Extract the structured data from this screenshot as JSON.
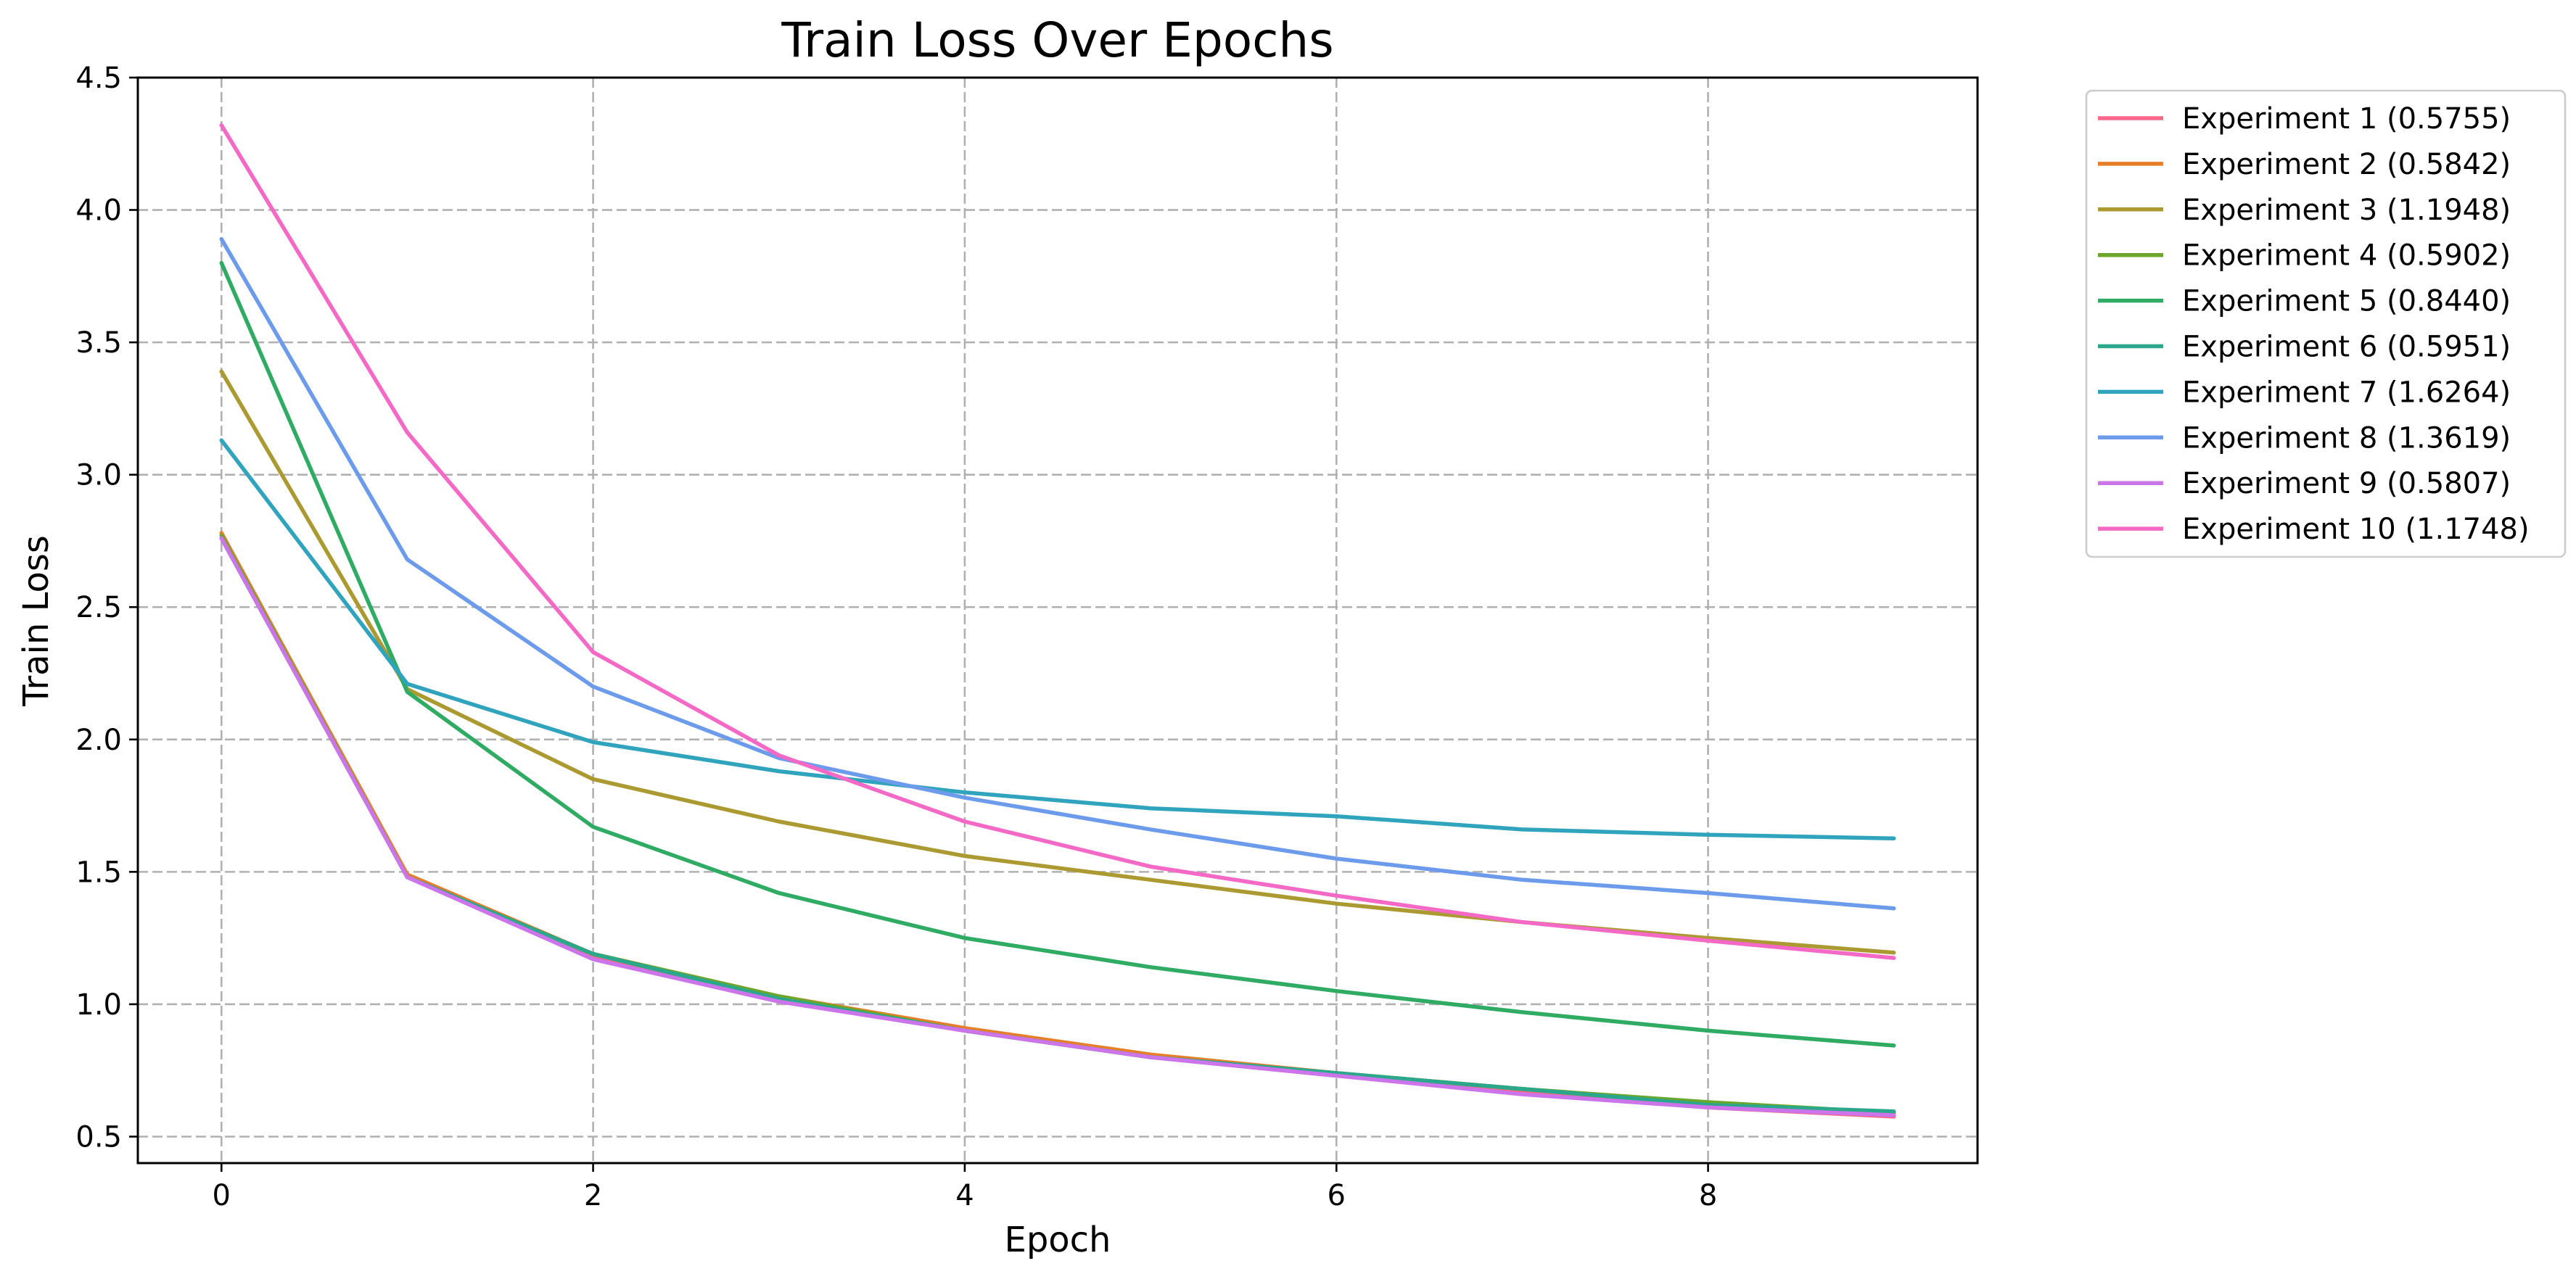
{
  "chart_data": {
    "type": "line",
    "title": "Train Loss Over Epochs",
    "xlabel": "Epoch",
    "ylabel": "Train Loss",
    "xlim": [
      -0.45,
      9.45
    ],
    "ylim": [
      0.4,
      4.5
    ],
    "x_ticks": [
      0,
      2,
      4,
      6,
      8
    ],
    "y_ticks": [
      0.5,
      1.0,
      1.5,
      2.0,
      2.5,
      3.0,
      3.5,
      4.0,
      4.5
    ],
    "x_tick_labels": [
      "0",
      "2",
      "4",
      "6",
      "8"
    ],
    "y_tick_labels": [
      "0.5",
      "1.0",
      "1.5",
      "2.0",
      "2.5",
      "3.0",
      "3.5",
      "4.0",
      "4.5"
    ],
    "grid": true,
    "legend_position": "outside-top-right",
    "x": [
      0,
      1,
      2,
      3,
      4,
      5,
      6,
      7,
      8,
      9
    ],
    "series": [
      {
        "name": "Experiment 1 (0.5755)",
        "color": "#f7678a",
        "values": [
          2.76,
          1.48,
          1.18,
          1.02,
          0.9,
          0.8,
          0.73,
          0.67,
          0.61,
          0.5755
        ]
      },
      {
        "name": "Experiment 2 (0.5842)",
        "color": "#e57f2a",
        "values": [
          2.78,
          1.49,
          1.19,
          1.03,
          0.91,
          0.81,
          0.74,
          0.68,
          0.62,
          0.5842
        ]
      },
      {
        "name": "Experiment 3 (1.1948)",
        "color": "#ab9a31",
        "values": [
          3.39,
          2.19,
          1.85,
          1.69,
          1.56,
          1.47,
          1.38,
          1.31,
          1.25,
          1.1948
        ]
      },
      {
        "name": "Experiment 4 (0.5902)",
        "color": "#6ba72b",
        "values": [
          2.77,
          1.48,
          1.19,
          1.03,
          0.9,
          0.8,
          0.74,
          0.68,
          0.63,
          0.5902
        ]
      },
      {
        "name": "Experiment 5 (0.8440)",
        "color": "#2fab63",
        "values": [
          3.8,
          2.18,
          1.67,
          1.42,
          1.25,
          1.14,
          1.05,
          0.97,
          0.9,
          0.844
        ]
      },
      {
        "name": "Experiment 6 (0.5951)",
        "color": "#2ba88c",
        "values": [
          2.76,
          1.48,
          1.19,
          1.02,
          0.9,
          0.8,
          0.74,
          0.68,
          0.62,
          0.5951
        ]
      },
      {
        "name": "Experiment 7 (1.6264)",
        "color": "#31a4bd",
        "values": [
          3.13,
          2.21,
          1.99,
          1.88,
          1.8,
          1.74,
          1.71,
          1.66,
          1.64,
          1.6264
        ]
      },
      {
        "name": "Experiment 8 (1.3619)",
        "color": "#6d9beb",
        "values": [
          3.89,
          2.68,
          2.2,
          1.93,
          1.78,
          1.66,
          1.55,
          1.47,
          1.42,
          1.3619
        ]
      },
      {
        "name": "Experiment 9 (0.5807)",
        "color": "#cc74ea",
        "values": [
          2.76,
          1.48,
          1.17,
          1.01,
          0.9,
          0.8,
          0.73,
          0.66,
          0.61,
          0.5807
        ]
      },
      {
        "name": "Experiment 10 (1.1748)",
        "color": "#f468c6",
        "values": [
          4.32,
          3.16,
          2.33,
          1.94,
          1.69,
          1.52,
          1.41,
          1.31,
          1.24,
          1.1748
        ]
      }
    ]
  }
}
